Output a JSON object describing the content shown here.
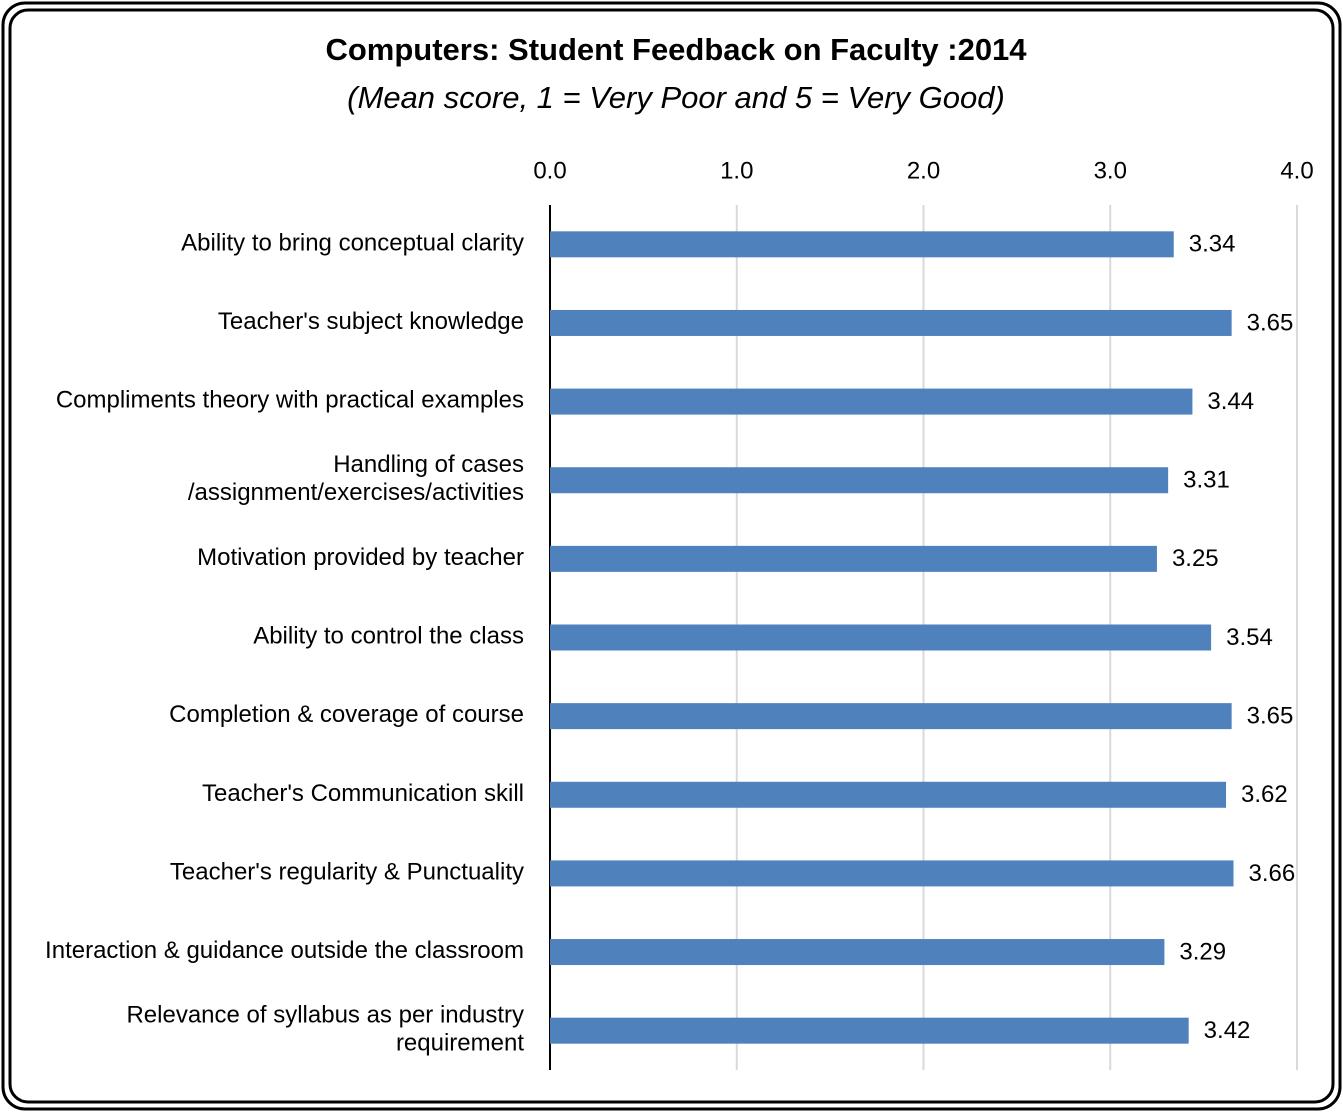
{
  "chart_data": {
    "type": "bar",
    "orientation": "horizontal",
    "title": "Computers: Student Feedback on Faculty :2014",
    "subtitle": "(Mean score, 1 = Very Poor and 5 = Very Good)",
    "categories": [
      "Ability to bring conceptual clarity",
      "Teacher's subject knowledge",
      "Compliments theory with practical examples",
      "Handling of cases /assignment/exercises/activities",
      "Motivation provided by teacher",
      "Ability to control the class",
      "Completion & coverage of course",
      "Teacher's Communication skill",
      "Teacher's regularity & Punctuality",
      "Interaction & guidance outside the classroom",
      "Relevance of syllabus as per industry requirement"
    ],
    "values": [
      3.34,
      3.65,
      3.44,
      3.31,
      3.25,
      3.54,
      3.65,
      3.62,
      3.66,
      3.29,
      3.42
    ],
    "color": "#4f81bd",
    "xlim": [
      0,
      4
    ],
    "xticks": [
      {
        "value": 0,
        "label": "0.0"
      },
      {
        "value": 1,
        "label": "1.0"
      },
      {
        "value": 2,
        "label": "2.0"
      },
      {
        "value": 3,
        "label": "3.0"
      },
      {
        "value": 4,
        "label": "4.0"
      }
    ],
    "grid": true
  }
}
